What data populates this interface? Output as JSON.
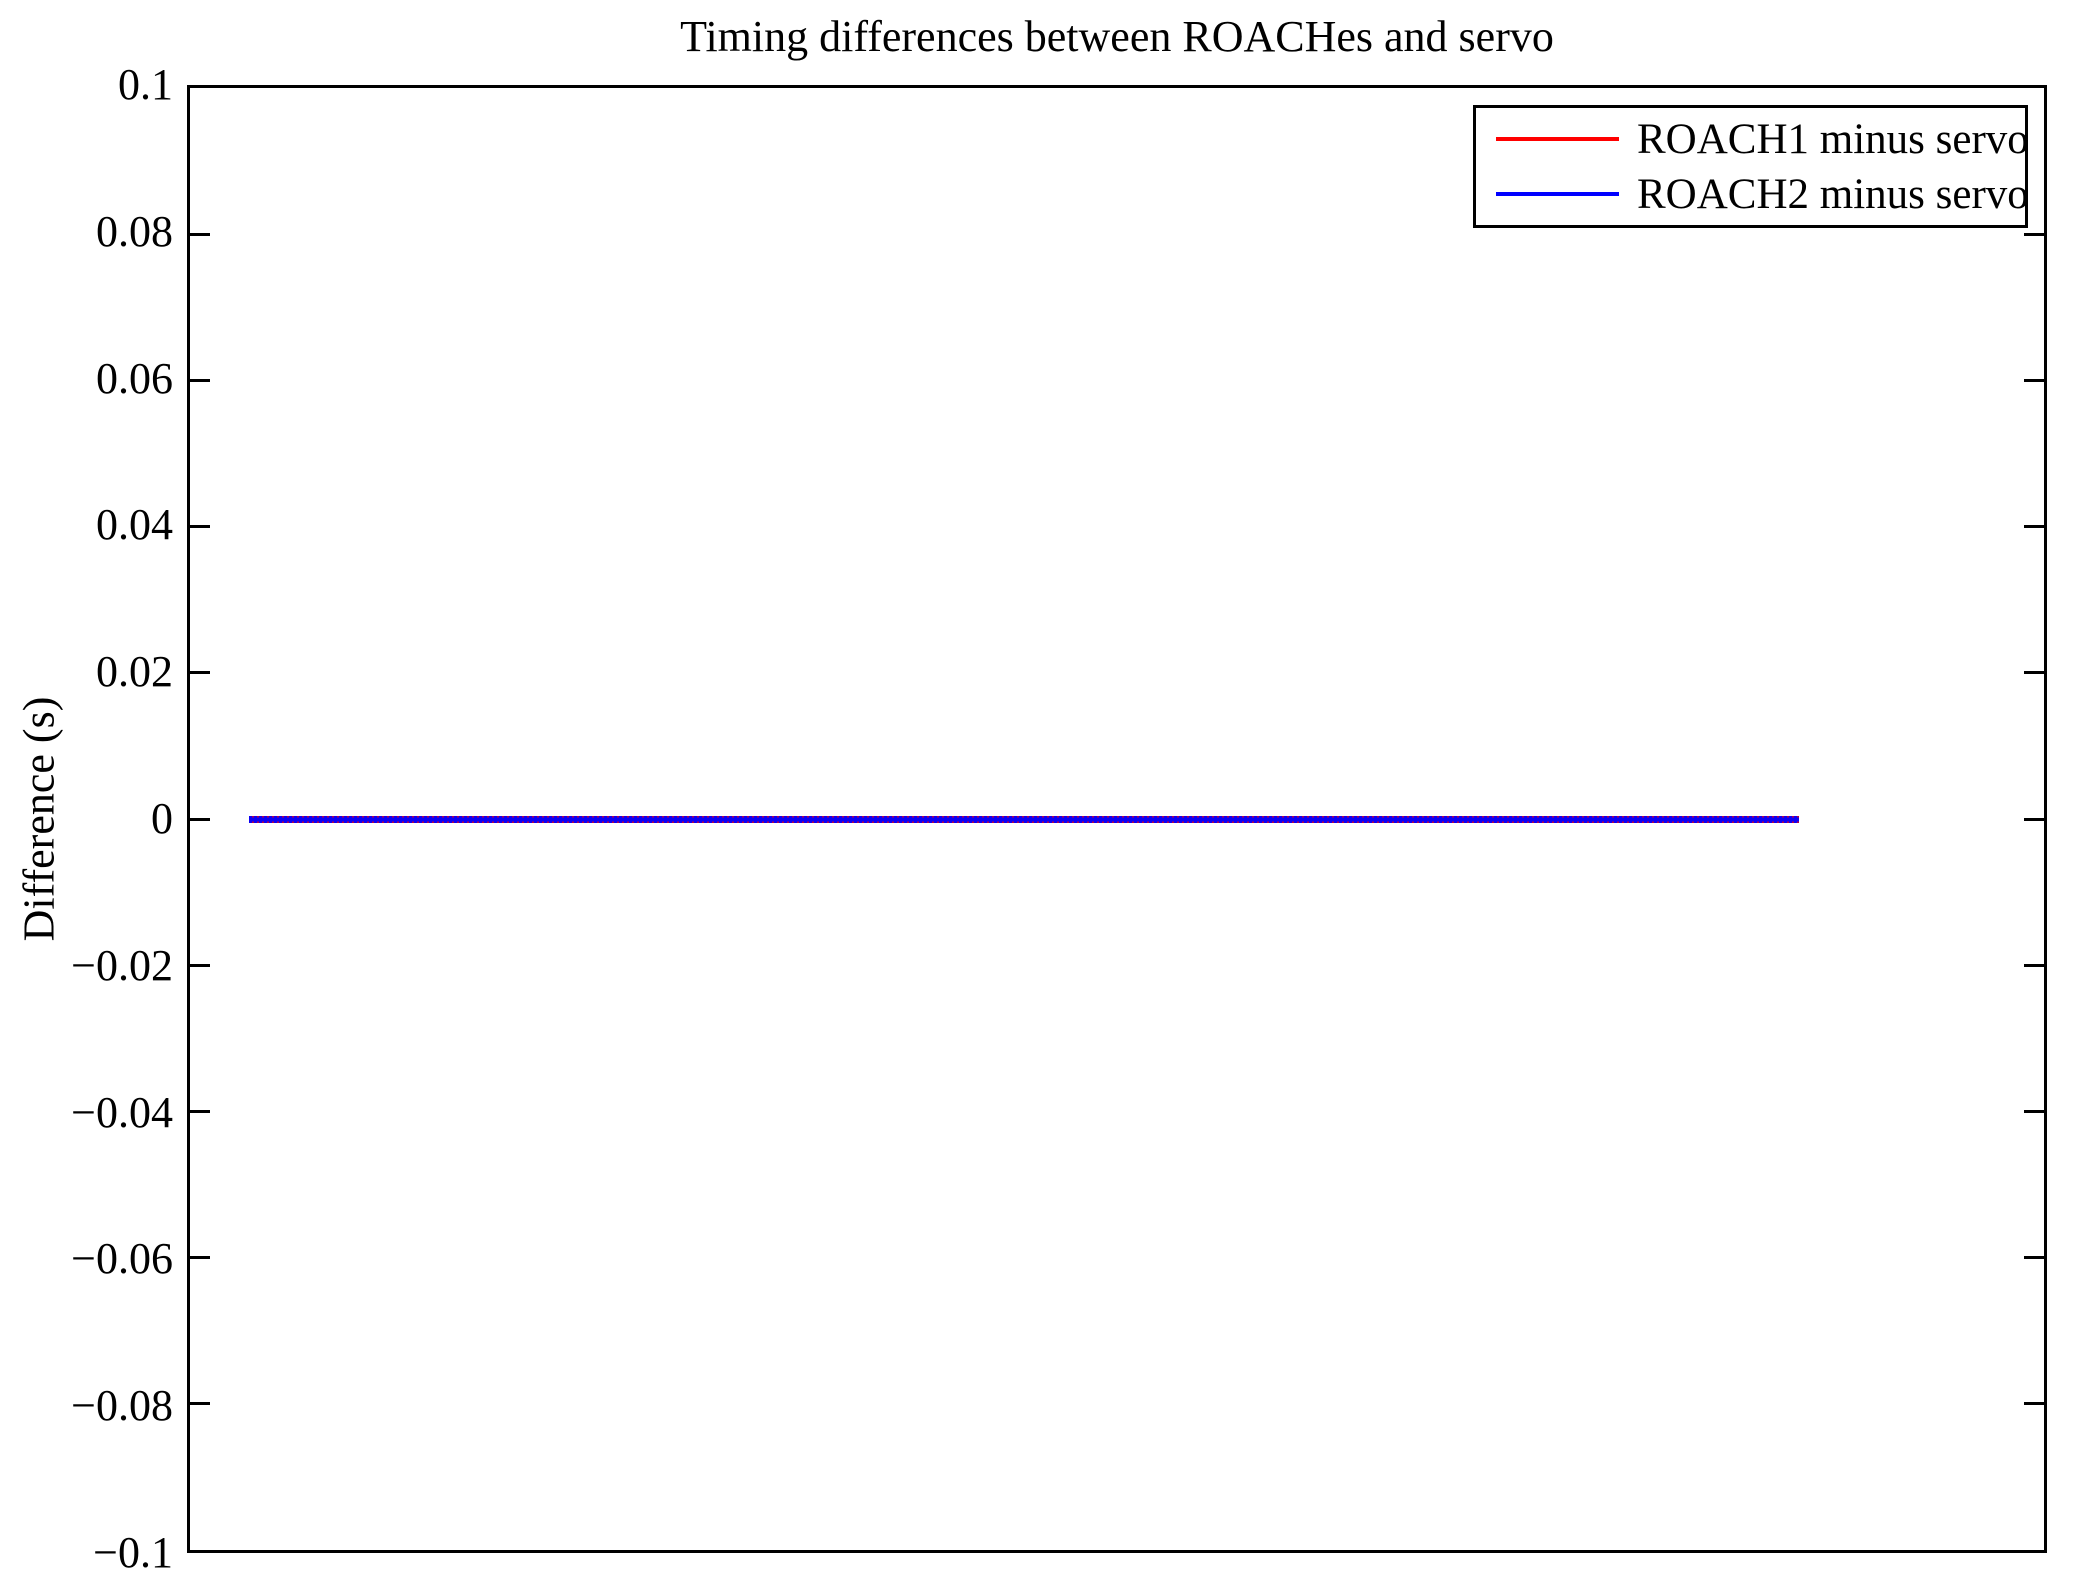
{
  "chart_data": {
    "type": "line",
    "title": "Timing differences between ROACHes and servo",
    "xlabel": "",
    "ylabel": "Difference (s)",
    "ylim": [
      -0.1,
      0.1
    ],
    "yticks": [
      0.1,
      0.08,
      0.06,
      0.04,
      0.02,
      0,
      -0.02,
      -0.04,
      -0.06,
      -0.08,
      -0.1
    ],
    "ytick_labels": [
      "0.1",
      "0.08",
      "0.06",
      "0.04",
      "0.02",
      "0",
      "−0.02",
      "−0.04",
      "−0.06",
      "−0.08",
      "−0.1"
    ],
    "xticks": [],
    "xtick_labels": [],
    "grid": false,
    "background": "#ffffff",
    "axis_color": "#000000",
    "legend": {
      "position": "upper right",
      "entries": [
        "ROACH1 minus servo",
        "ROACH2 minus servo"
      ]
    },
    "series": [
      {
        "name": "ROACH1 minus servo",
        "color": "#ff0000",
        "y_constant": 0,
        "x_start_frac": 0.032,
        "x_end_frac": 0.868
      },
      {
        "name": "ROACH2 minus servo",
        "color": "#0000ff",
        "y_constant": 0,
        "x_start_frac": 0.032,
        "x_end_frac": 0.868
      }
    ]
  }
}
